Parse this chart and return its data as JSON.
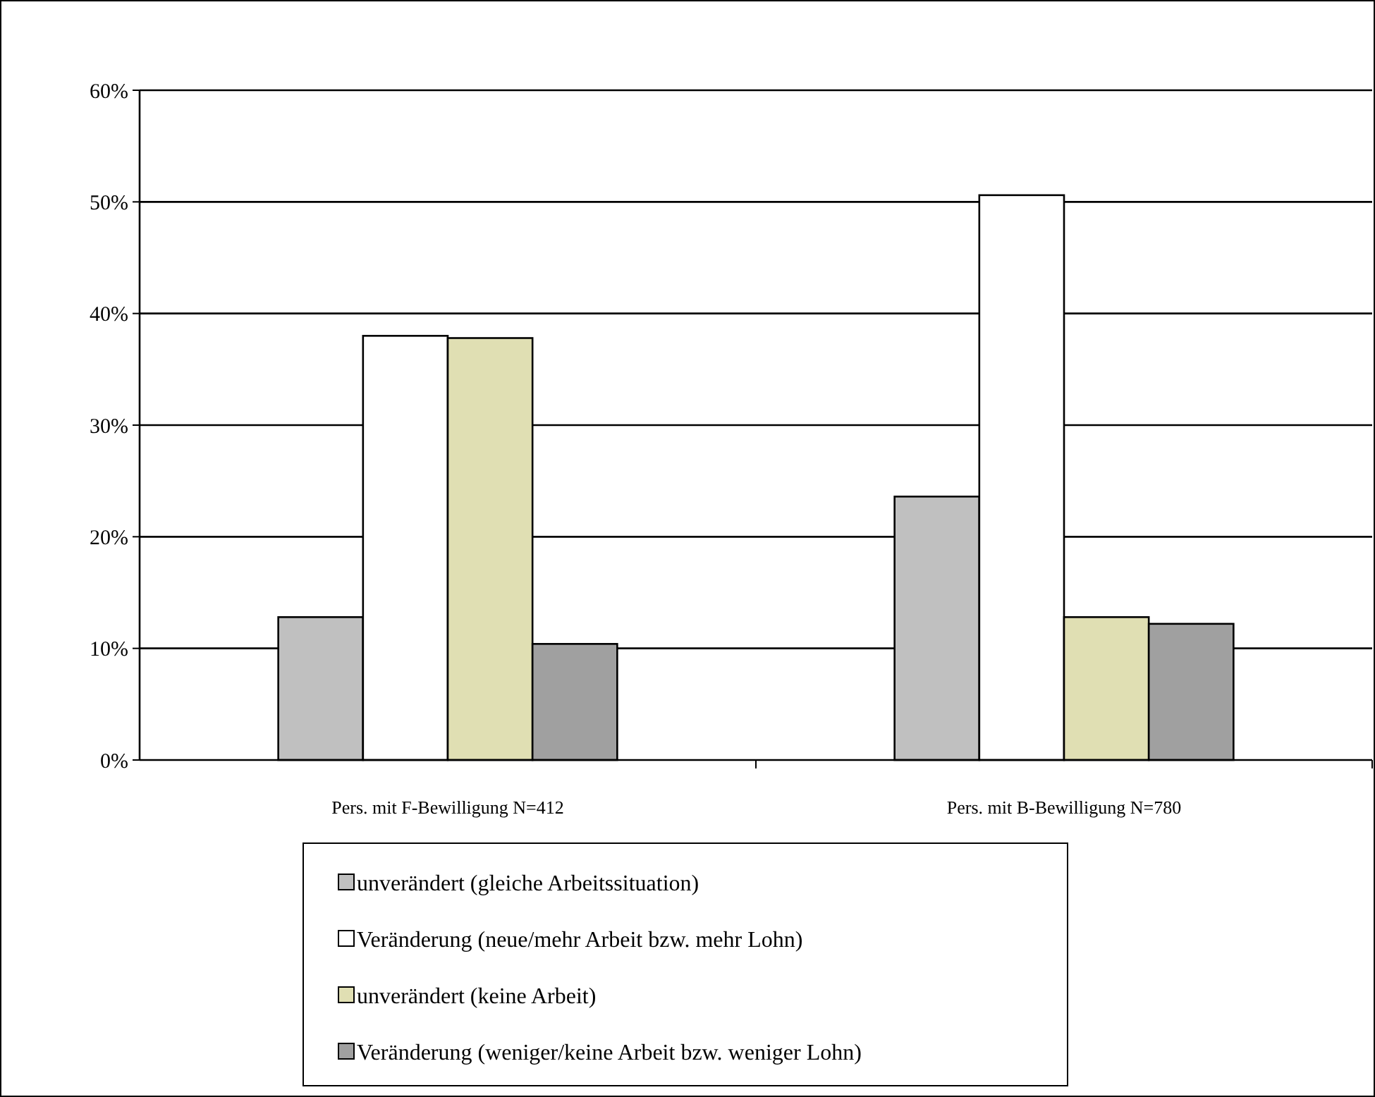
{
  "chart_data": {
    "type": "bar",
    "categories": [
      "Pers. mit F-Bewilligung N=412",
      "Pers. mit B-Bewilligung N=780"
    ],
    "series": [
      {
        "name": "unverändert (gleiche Arbeitssituation)",
        "color": "#c0c0c0",
        "values": [
          12.8,
          23.6
        ]
      },
      {
        "name": "Veränderung (neue/mehr Arbeit bzw. mehr Lohn)",
        "color": "#ffffff",
        "values": [
          38.0,
          50.6
        ]
      },
      {
        "name": "unverändert (keine Arbeit)",
        "color": "#e0dfb3",
        "values": [
          37.8,
          12.8
        ]
      },
      {
        "name": "Veränderung (weniger/keine Arbeit bzw. weniger Lohn)",
        "color": "#a0a0a0",
        "values": [
          10.4,
          12.2
        ]
      }
    ],
    "ylim": [
      0,
      60
    ],
    "yticks": [
      {
        "value": 0,
        "label": "0%"
      },
      {
        "value": 10,
        "label": "10%"
      },
      {
        "value": 20,
        "label": "20%"
      },
      {
        "value": 30,
        "label": "30%"
      },
      {
        "value": 40,
        "label": "40%"
      },
      {
        "value": 50,
        "label": "50%"
      },
      {
        "value": 60,
        "label": "60%"
      }
    ],
    "grid": "y",
    "legend": "bottom"
  }
}
